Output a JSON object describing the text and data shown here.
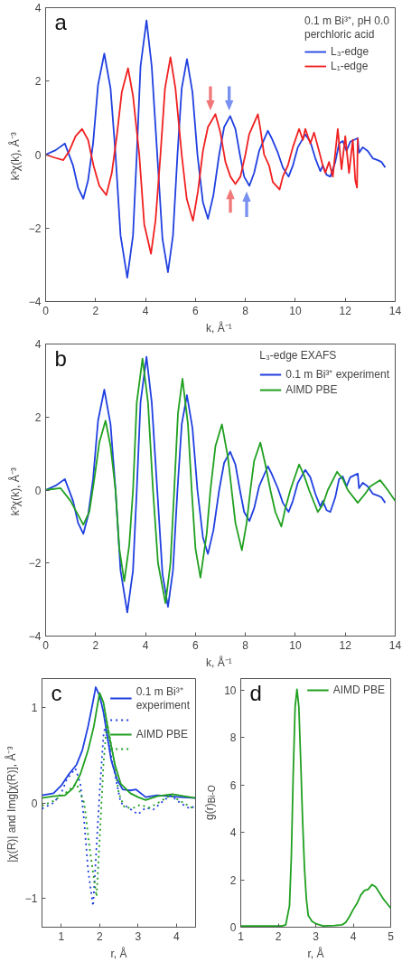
{
  "chart_data": [
    {
      "type": "line",
      "annotations": [
        "a"
      ],
      "legend_title": "0.1 m Bi³⁺, pH 0.0\nperchloric acid",
      "legend": "top right",
      "xlabel": "k,  Å⁻¹",
      "ylabel": "k³χ(k),  Å⁻³",
      "xlim": [
        0,
        14
      ],
      "ylim": [
        -4,
        4
      ],
      "xticks": [
        0,
        2,
        4,
        6,
        8,
        10,
        12,
        14
      ],
      "yticks": [
        {
          "value": -4,
          "label": "−4"
        },
        {
          "value": -2,
          "label": "−2"
        },
        0,
        2,
        4
      ],
      "series": [
        {
          "name": "L₃-edge",
          "color": "#2040e0",
          "x": [
            0,
            0.4,
            0.77,
            1.1,
            1.3,
            1.51,
            1.7,
            1.9,
            2.1,
            2.35,
            2.6,
            2.8,
            3.0,
            3.27,
            3.5,
            3.65,
            3.8,
            4.04,
            4.25,
            4.47,
            4.68,
            4.9,
            5.1,
            5.28,
            5.45,
            5.66,
            5.88,
            6.08,
            6.3,
            6.5,
            6.72,
            6.95,
            7.15,
            7.39,
            7.6,
            7.78,
            7.95,
            8.16,
            8.35,
            8.55,
            8.9,
            9.05,
            9.3,
            9.5,
            9.73,
            9.9,
            10.1,
            10.4,
            10.6,
            10.8,
            11.0,
            11.1,
            11.25,
            11.4,
            11.6,
            11.75,
            11.9,
            12.05,
            12.2,
            12.5,
            12.55,
            12.7,
            12.9,
            13.1,
            13.3,
            13.45,
            13.6
          ],
          "values": [
            0,
            0.12,
            0.3,
            -0.3,
            -0.9,
            -1.2,
            -0.7,
            0.3,
            1.9,
            2.75,
            1.8,
            0,
            -2.2,
            -3.35,
            -2.2,
            0,
            2.4,
            3.65,
            2.4,
            0,
            -2.3,
            -3.2,
            -2.2,
            0,
            1.8,
            2.6,
            1.7,
            0,
            -1.3,
            -1.75,
            -1.1,
            0,
            0.75,
            1.05,
            0.7,
            0,
            -0.6,
            -0.85,
            -0.5,
            0.1,
            0.65,
            0.45,
            0.05,
            -0.35,
            -0.6,
            -0.3,
            0.2,
            0.55,
            0.35,
            -0.1,
            -0.45,
            -0.3,
            -0.55,
            -0.6,
            -0.2,
            0.3,
            0.37,
            0.1,
            0.35,
            0.45,
            0.05,
            0.2,
            0.1,
            -0.1,
            -0.15,
            -0.2,
            -0.35
          ]
        },
        {
          "name": "L₁-edge",
          "color": "#f02020",
          "x": [
            0,
            0.35,
            0.71,
            0.95,
            1.2,
            1.46,
            1.7,
            1.92,
            2.15,
            2.43,
            2.65,
            2.85,
            3.05,
            3.3,
            3.5,
            3.75,
            3.95,
            4.22,
            4.4,
            4.6,
            4.78,
            5.0,
            5.2,
            5.45,
            5.65,
            5.9,
            6.1,
            6.3,
            6.5,
            6.8,
            7.0,
            7.2,
            7.4,
            7.6,
            7.8,
            8.0,
            8.15,
            8.5,
            8.6,
            8.75,
            8.95,
            9.1,
            9.37,
            9.5,
            9.7,
            9.9,
            10.15,
            10.3,
            10.4,
            10.6,
            10.75,
            10.95,
            11.1,
            11.2,
            11.35,
            11.5,
            11.7,
            11.85,
            12.0,
            12.15,
            12.3,
            12.4,
            12.47,
            12.5
          ],
          "values": [
            0,
            -0.08,
            -0.15,
            0.1,
            0.5,
            0.7,
            0.4,
            -0.3,
            -0.85,
            -1.1,
            -0.5,
            0.5,
            1.7,
            2.35,
            1.6,
            0,
            -1.9,
            -2.7,
            -1.8,
            0,
            1.8,
            2.65,
            1.8,
            0,
            -1.2,
            -1.8,
            -1.0,
            0.1,
            0.75,
            1.1,
            0.6,
            -0.2,
            -0.6,
            -0.8,
            -0.6,
            0,
            0.55,
            1.1,
            0.7,
            0,
            -0.3,
            -0.75,
            -0.95,
            -0.6,
            -0.3,
            0.2,
            0.7,
            0.4,
            0.7,
            0.3,
            0.6,
            0.1,
            -0.3,
            -0.5,
            -0.2,
            -0.6,
            0.7,
            -0.4,
            0.5,
            -0.5,
            0.4,
            -0.7,
            -0.9,
            0.45
          ]
        }
      ]
    },
    {
      "type": "line",
      "annotations": [
        "b"
      ],
      "legend_title": "L₃-edge EXAFS",
      "legend": "top right",
      "xlabel": "k,  Å⁻¹",
      "ylabel": "k³χ(k),  Å⁻³",
      "xlim": [
        0,
        14
      ],
      "ylim": [
        -4,
        4
      ],
      "xticks": [
        0,
        2,
        4,
        6,
        8,
        10,
        12,
        14
      ],
      "yticks": [
        {
          "value": -4,
          "label": "−4"
        },
        {
          "value": -2,
          "label": "−2"
        },
        0,
        2,
        4
      ],
      "series": [
        {
          "name": "0.1 m Bi³⁺ experiment",
          "color": "#2040e0",
          "x": [
            0,
            0.4,
            0.77,
            1.1,
            1.3,
            1.51,
            1.7,
            1.9,
            2.1,
            2.35,
            2.6,
            2.8,
            3.0,
            3.27,
            3.5,
            3.65,
            3.8,
            4.04,
            4.25,
            4.47,
            4.68,
            4.9,
            5.1,
            5.28,
            5.45,
            5.66,
            5.88,
            6.08,
            6.3,
            6.5,
            6.72,
            6.95,
            7.15,
            7.39,
            7.6,
            7.78,
            7.95,
            8.16,
            8.35,
            8.55,
            8.9,
            9.05,
            9.3,
            9.5,
            9.73,
            9.9,
            10.1,
            10.4,
            10.6,
            10.8,
            11.0,
            11.1,
            11.25,
            11.4,
            11.6,
            11.75,
            11.9,
            12.05,
            12.2,
            12.5,
            12.55,
            12.7,
            12.9,
            13.1,
            13.3,
            13.45,
            13.6
          ],
          "values": [
            0,
            0.12,
            0.3,
            -0.3,
            -0.9,
            -1.2,
            -0.7,
            0.3,
            1.9,
            2.75,
            1.8,
            0,
            -2.2,
            -3.35,
            -2.2,
            0,
            2.4,
            3.65,
            2.4,
            0,
            -2.3,
            -3.2,
            -2.2,
            0,
            1.8,
            2.6,
            1.7,
            0,
            -1.3,
            -1.75,
            -1.1,
            0,
            0.75,
            1.05,
            0.7,
            0,
            -0.6,
            -0.85,
            -0.5,
            0.1,
            0.65,
            0.45,
            0.05,
            -0.35,
            -0.6,
            -0.3,
            0.2,
            0.55,
            0.35,
            -0.1,
            -0.45,
            -0.3,
            -0.55,
            -0.6,
            -0.2,
            0.3,
            0.37,
            0.1,
            0.35,
            0.45,
            0.05,
            0.2,
            0.1,
            -0.1,
            -0.15,
            -0.2,
            -0.35
          ]
        },
        {
          "name": "AIMD PBE",
          "color": "#20a020",
          "x": [
            0,
            0.6,
            1.0,
            1.51,
            1.75,
            1.95,
            2.15,
            2.4,
            2.6,
            2.8,
            2.95,
            3.15,
            3.35,
            3.5,
            3.65,
            3.88,
            4.1,
            4.3,
            4.5,
            4.8,
            5.0,
            5.15,
            5.3,
            5.48,
            5.7,
            5.85,
            6.0,
            6.2,
            6.45,
            6.6,
            6.8,
            7.06,
            7.3,
            7.45,
            7.6,
            7.86,
            8.05,
            8.2,
            8.35,
            8.6,
            8.8,
            9.0,
            9.2,
            9.44,
            9.6,
            9.8,
            10.15,
            10.35,
            10.55,
            10.9,
            11.1,
            11.3,
            11.67,
            11.9,
            12.1,
            12.5,
            12.8,
            13.0,
            13.4,
            13.7,
            14.0
          ],
          "values": [
            0,
            0.05,
            -0.3,
            -0.95,
            -0.6,
            0.3,
            1.3,
            1.9,
            1.2,
            0,
            -1.6,
            -2.5,
            -1.5,
            0,
            2.4,
            3.6,
            2.4,
            0,
            -2.0,
            -3.1,
            -2.0,
            0,
            2.1,
            3.05,
            1.8,
            0,
            -1.6,
            -2.4,
            -1.2,
            0,
            1.2,
            1.8,
            0.9,
            0,
            -0.9,
            -1.65,
            -0.9,
            0,
            0.8,
            1.3,
            0.7,
            0,
            -0.6,
            -1.0,
            -0.5,
            0,
            0.7,
            0.4,
            0,
            -0.6,
            -0.4,
            0,
            0.5,
            0.3,
            0,
            -0.35,
            -0.1,
            0.1,
            0.27,
            0,
            -0.3
          ]
        }
      ]
    },
    {
      "type": "line",
      "annotations": [
        "c"
      ],
      "legend": "top right",
      "xlabel": "r, Å",
      "ylabel": "|χ(R)| and Img[χ(R)],  Å⁻³",
      "xlim": [
        0.5,
        4.5
      ],
      "ylim": [
        -1.3,
        1.3
      ],
      "xticks": [
        1,
        2,
        3,
        4
      ],
      "yticks": [
        {
          "value": -1,
          "label": "−1"
        },
        0,
        1
      ],
      "series": [
        {
          "name": "0.1 m Bi³⁺\nexperiment",
          "color": "#2040e0",
          "line_style": "solid",
          "x": [
            0.5,
            0.8,
            1.0,
            1.2,
            1.4,
            1.55,
            1.7,
            1.8,
            1.9,
            2.0,
            2.1,
            2.2,
            2.3,
            2.45,
            2.6,
            2.8,
            2.95,
            3.2,
            3.5,
            3.8,
            4.1,
            4.5
          ],
          "values": [
            0.08,
            0.1,
            0.18,
            0.3,
            0.4,
            0.55,
            0.8,
            1.0,
            1.21,
            1.12,
            0.95,
            0.7,
            0.45,
            0.25,
            0.14,
            0.13,
            0.14,
            0.06,
            0.08,
            0.07,
            0.06,
            0.05
          ]
        },
        {
          "color": "#2040e0",
          "line_style": "dotted",
          "x": [
            0.5,
            0.8,
            1.0,
            1.15,
            1.37,
            1.5,
            1.6,
            1.7,
            1.83,
            1.9,
            2.0,
            2.1,
            2.14,
            2.25,
            2.4,
            2.55,
            2.75,
            3.0,
            3.2,
            3.4,
            3.6,
            3.85,
            4.1,
            4.35,
            4.5
          ],
          "values": [
            -0.06,
            0,
            0.1,
            0.25,
            0.36,
            0.2,
            -0.2,
            -0.7,
            -1.08,
            -0.6,
            0.1,
            0.7,
            0.79,
            0.6,
            0.3,
            0,
            -0.05,
            -0.12,
            -0.05,
            -0.07,
            0,
            0.08,
            0,
            -0.06,
            -0.03
          ]
        },
        {
          "name": "AIMD PBE",
          "color": "#20a020",
          "line_style": "solid",
          "x": [
            0.5,
            0.8,
            1.1,
            1.3,
            1.5,
            1.7,
            1.85,
            2.0,
            2.1,
            2.25,
            2.4,
            2.55,
            2.8,
            3.0,
            3.2,
            3.5,
            3.9,
            4.2,
            4.5
          ],
          "values": [
            0.05,
            0.07,
            0.08,
            0.15,
            0.3,
            0.55,
            0.8,
            1.15,
            1.05,
            0.7,
            0.4,
            0.2,
            0.1,
            0.06,
            0.03,
            0.07,
            0.09,
            0.07,
            0.05
          ]
        },
        {
          "color": "#20a020",
          "line_style": "dotted",
          "x": [
            0.5,
            0.8,
            1.1,
            1.4,
            1.6,
            1.75,
            1.92,
            2.0,
            2.1,
            2.19,
            2.35,
            2.5,
            2.65,
            2.9,
            3.05,
            3.3,
            3.6,
            3.85,
            4.1,
            4.4,
            4.5
          ],
          "values": [
            -0.03,
            0.02,
            0.1,
            0.2,
            0,
            -0.5,
            -0.98,
            -0.4,
            0.4,
            0.85,
            0.5,
            0.1,
            -0.05,
            -0.05,
            -0.02,
            -0.05,
            0.02,
            0.08,
            0.02,
            -0.05,
            -0.04
          ]
        }
      ]
    },
    {
      "type": "line",
      "annotations": [
        "d"
      ],
      "legend": "top right",
      "xlabel": "r, Å",
      "ylabel": "g(r)$_{Bi-O}$",
      "xlim": [
        1,
        5
      ],
      "ylim": [
        0,
        10.5
      ],
      "xticks": [
        1,
        2,
        3,
        4,
        5
      ],
      "yticks": [
        0,
        2,
        4,
        6,
        8,
        10
      ],
      "series": [
        {
          "name": "AIMD PBE",
          "color": "#20a020",
          "x": [
            1,
            2.1,
            2.2,
            2.3,
            2.35,
            2.4,
            2.45,
            2.5,
            2.55,
            2.6,
            2.65,
            2.7,
            2.75,
            2.8,
            2.9,
            3.0,
            3.2,
            3.5,
            3.7,
            3.8,
            3.9,
            4.0,
            4.1,
            4.2,
            4.3,
            4.4,
            4.5,
            4.6,
            4.7,
            4.8,
            4.9,
            5.0
          ],
          "values": [
            0.05,
            0.05,
            0.1,
            0.9,
            3,
            6.5,
            9.3,
            10.05,
            9.3,
            7,
            4.5,
            2.5,
            1.2,
            0.5,
            0.25,
            0.15,
            0.05,
            0.07,
            0.1,
            0.2,
            0.45,
            0.75,
            1.0,
            1.35,
            1.55,
            1.6,
            1.8,
            1.7,
            1.45,
            1.2,
            1.0,
            0.8
          ]
        }
      ]
    }
  ]
}
